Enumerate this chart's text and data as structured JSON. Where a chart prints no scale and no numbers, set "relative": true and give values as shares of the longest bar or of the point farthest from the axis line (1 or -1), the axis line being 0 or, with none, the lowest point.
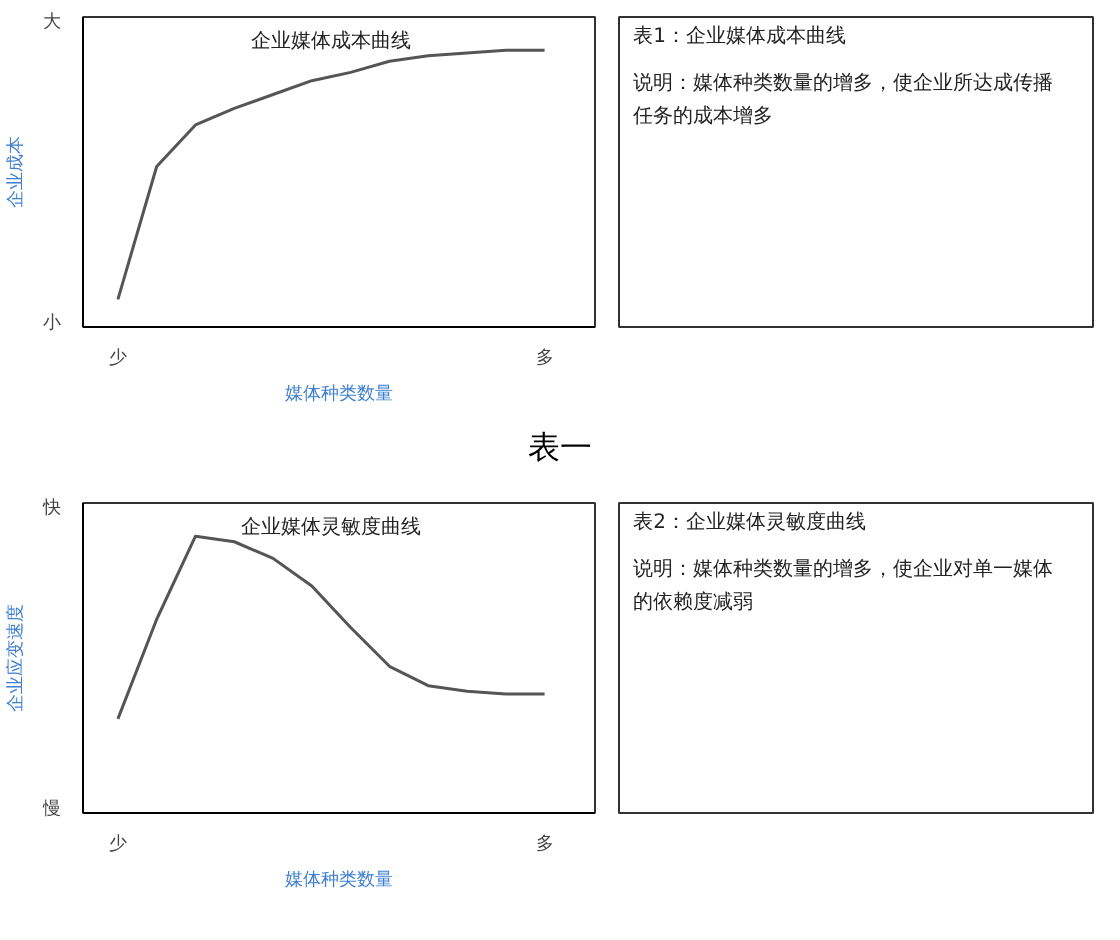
{
  "chart_data": [
    {
      "type": "line",
      "relative": true,
      "title": "企业媒体成本曲线",
      "xlabel": "媒体种类数量",
      "ylabel": "企业成本",
      "categories": [
        null,
        null,
        null,
        null,
        null,
        null,
        null,
        null,
        null,
        null,
        null,
        null
      ],
      "series": [
        {
          "color": "#555555",
          "values": [
            0.1,
            0.58,
            0.73,
            0.79,
            0.84,
            0.89,
            0.92,
            0.96,
            0.98,
            0.99,
            1.0,
            1.0
          ]
        }
      ],
      "annotations": [
        "大",
        "小",
        "少",
        "多",
        "表一"
      ]
    },
    {
      "type": "other",
      "title": "表1：企业媒体成本曲线",
      "annotations": [
        "说明：媒体种类数量的增多，使企业所达成传播任务的成本增多"
      ]
    },
    {
      "type": "line",
      "relative": true,
      "title": "企业媒体灵敏度曲线",
      "xlabel": "媒体种类数量",
      "ylabel": "企业应变速度",
      "categories": [
        null,
        null,
        null,
        null,
        null,
        null,
        null,
        null,
        null,
        null,
        null,
        null
      ],
      "series": [
        {
          "color": "#555555",
          "values": [
            0.34,
            0.7,
            1.0,
            0.98,
            0.92,
            0.82,
            0.67,
            0.53,
            0.46,
            0.44,
            0.43,
            0.43
          ]
        }
      ],
      "annotations": [
        "快",
        "慢",
        "少",
        "多"
      ]
    },
    {
      "type": "other",
      "title": "表2：企业媒体灵敏度曲线",
      "annotations": [
        "说明：媒体种类数量的增多，使企业对单一媒体的依赖度减弱"
      ]
    }
  ]
}
